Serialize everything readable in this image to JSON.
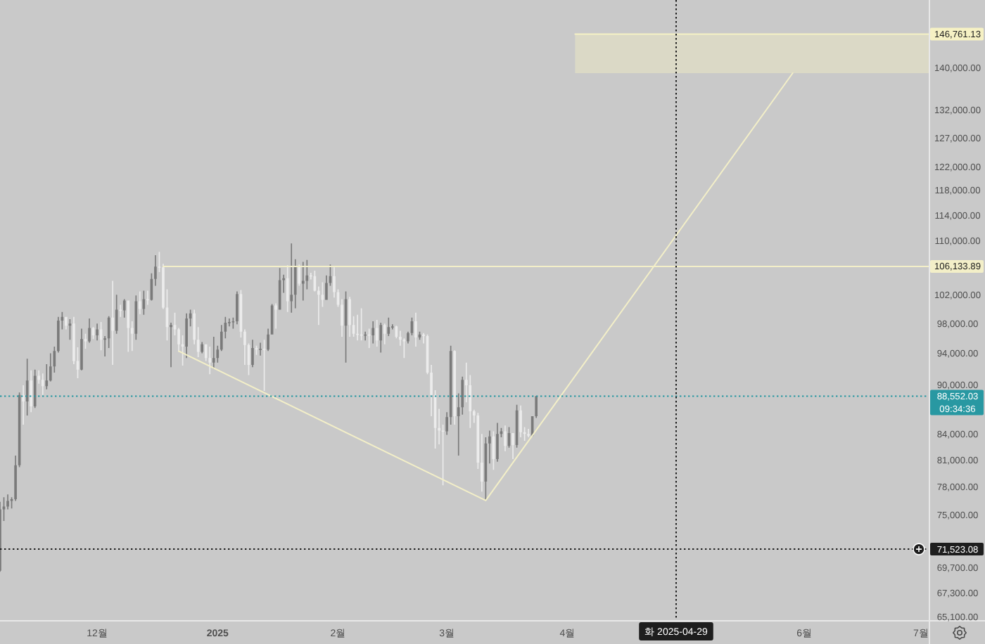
{
  "chart_data": {
    "type": "candlestick",
    "log": "y",
    "xlim": [
      "2024-11-06",
      "2025-07-03"
    ],
    "ylim": [
      64780,
      153930
    ],
    "xticks": [
      {
        "value": "2024-12-01",
        "label": "12월"
      },
      {
        "value": "2025-01-01",
        "label": "2025"
      },
      {
        "value": "2025-02-01",
        "label": "2월"
      },
      {
        "value": "2025-03-01",
        "label": "3월"
      },
      {
        "value": "2025-04-01",
        "label": "4월"
      },
      {
        "value": "2025-06-01",
        "label": "6월"
      },
      {
        "value": "2025-07-01",
        "label": "7월"
      }
    ],
    "yticks": [
      {
        "value": 65100,
        "label": "65,100.00"
      },
      {
        "value": 67300,
        "label": "67,300.00"
      },
      {
        "value": 69700,
        "label": "69,700.00"
      },
      {
        "value": 75000,
        "label": "75,000.00"
      },
      {
        "value": 78000,
        "label": "78,000.00"
      },
      {
        "value": 81000,
        "label": "81,000.00"
      },
      {
        "value": 84000,
        "label": "84,000.00"
      },
      {
        "value": 90000,
        "label": "90,000.00"
      },
      {
        "value": 94000,
        "label": "94,000.00"
      },
      {
        "value": 98000,
        "label": "98,000.00"
      },
      {
        "value": 102000,
        "label": "102,000.00"
      },
      {
        "value": 110000,
        "label": "110,000.00"
      },
      {
        "value": 114000,
        "label": "114,000.00"
      },
      {
        "value": 118000,
        "label": "118,000.00"
      },
      {
        "value": 122000,
        "label": "122,000.00"
      },
      {
        "value": 127000,
        "label": "127,000.00"
      },
      {
        "value": 132000,
        "label": "132,000.00"
      },
      {
        "value": 140000,
        "label": "140,000.00"
      }
    ],
    "x": [
      "2024-11-06",
      "2024-11-07",
      "2024-11-08",
      "2024-11-09",
      "2024-11-10",
      "2024-11-11",
      "2024-11-12",
      "2024-11-13",
      "2024-11-14",
      "2024-11-15",
      "2024-11-16",
      "2024-11-17",
      "2024-11-18",
      "2024-11-19",
      "2024-11-20",
      "2024-11-21",
      "2024-11-22",
      "2024-11-23",
      "2024-11-24",
      "2024-11-25",
      "2024-11-26",
      "2024-11-27",
      "2024-11-28",
      "2024-11-29",
      "2024-11-30",
      "2024-12-01",
      "2024-12-02",
      "2024-12-03",
      "2024-12-04",
      "2024-12-05",
      "2024-12-06",
      "2024-12-07",
      "2024-12-08",
      "2024-12-09",
      "2024-12-10",
      "2024-12-11",
      "2024-12-12",
      "2024-12-13",
      "2024-12-14",
      "2024-12-15",
      "2024-12-16",
      "2024-12-17",
      "2024-12-18",
      "2024-12-19",
      "2024-12-20",
      "2024-12-21",
      "2024-12-22",
      "2024-12-23",
      "2024-12-24",
      "2024-12-25",
      "2024-12-26",
      "2024-12-27",
      "2024-12-28",
      "2024-12-29",
      "2024-12-30",
      "2024-12-31",
      "2025-01-01",
      "2025-01-02",
      "2025-01-03",
      "2025-01-04",
      "2025-01-05",
      "2025-01-06",
      "2025-01-07",
      "2025-01-08",
      "2025-01-09",
      "2025-01-10",
      "2025-01-11",
      "2025-01-12",
      "2025-01-13",
      "2025-01-14",
      "2025-01-15",
      "2025-01-16",
      "2025-01-17",
      "2025-01-18",
      "2025-01-19",
      "2025-01-20",
      "2025-01-21",
      "2025-01-22",
      "2025-01-23",
      "2025-01-24",
      "2025-01-25",
      "2025-01-26",
      "2025-01-27",
      "2025-01-28",
      "2025-01-29",
      "2025-01-30",
      "2025-01-31",
      "2025-02-01",
      "2025-02-02",
      "2025-02-03",
      "2025-02-04",
      "2025-02-05",
      "2025-02-06",
      "2025-02-07",
      "2025-02-08",
      "2025-02-09",
      "2025-02-10",
      "2025-02-11",
      "2025-02-12",
      "2025-02-13",
      "2025-02-14",
      "2025-02-15",
      "2025-02-16",
      "2025-02-17",
      "2025-02-18",
      "2025-02-19",
      "2025-02-20",
      "2025-02-21",
      "2025-02-22",
      "2025-02-23",
      "2025-02-24",
      "2025-02-25",
      "2025-02-26",
      "2025-02-27",
      "2025-02-28",
      "2025-03-01",
      "2025-03-02",
      "2025-03-03",
      "2025-03-04",
      "2025-03-05",
      "2025-03-06",
      "2025-03-07",
      "2025-03-08",
      "2025-03-09",
      "2025-03-10",
      "2025-03-11",
      "2025-03-12",
      "2025-03-13",
      "2025-03-14",
      "2025-03-15",
      "2025-03-16",
      "2025-03-17",
      "2025-03-18",
      "2025-03-19",
      "2025-03-20",
      "2025-03-21",
      "2025-03-22",
      "2025-03-23",
      "2025-03-24"
    ],
    "ohlc": [
      [
        69400,
        76400,
        69300,
        75600
      ],
      [
        75600,
        76900,
        74400,
        75900
      ],
      [
        75900,
        77200,
        75600,
        76500
      ],
      [
        76500,
        76900,
        75700,
        76700
      ],
      [
        76700,
        81500,
        76500,
        80400
      ],
      [
        80400,
        89000,
        80200,
        88700
      ],
      [
        88700,
        89900,
        85100,
        87900
      ],
      [
        87900,
        93300,
        86200,
        90500
      ],
      [
        90500,
        91800,
        86600,
        87300
      ],
      [
        87300,
        91900,
        87100,
        91100
      ],
      [
        91100,
        91800,
        90100,
        90600
      ],
      [
        90600,
        91400,
        88700,
        89800
      ],
      [
        89800,
        92600,
        89400,
        90500
      ],
      [
        90500,
        94000,
        90400,
        92300
      ],
      [
        92300,
        94900,
        91500,
        94300
      ],
      [
        94300,
        98900,
        94100,
        98400
      ],
      [
        98400,
        99600,
        97200,
        98900
      ],
      [
        98900,
        98900,
        97200,
        97700
      ],
      [
        97700,
        98600,
        95800,
        98000
      ],
      [
        98000,
        98900,
        92600,
        93000
      ],
      [
        93000,
        94800,
        90800,
        91900
      ],
      [
        91900,
        97300,
        91800,
        95900
      ],
      [
        95900,
        96600,
        94600,
        95600
      ],
      [
        95600,
        98700,
        95400,
        97400
      ],
      [
        97400,
        97500,
        95900,
        96400
      ],
      [
        96400,
        98000,
        95700,
        97200
      ],
      [
        97200,
        98200,
        94400,
        95800
      ],
      [
        95800,
        96300,
        93600,
        96000
      ],
      [
        96000,
        99000,
        94700,
        98800
      ],
      [
        98800,
        104000,
        92500,
        97000
      ],
      [
        97000,
        102000,
        96600,
        99900
      ],
      [
        99900,
        100600,
        98900,
        99800
      ],
      [
        99800,
        101400,
        98800,
        101200
      ],
      [
        101200,
        101200,
        94200,
        97400
      ],
      [
        97400,
        98300,
        94300,
        96600
      ],
      [
        96600,
        101900,
        95800,
        101100
      ],
      [
        101100,
        102500,
        99300,
        100000
      ],
      [
        100000,
        102600,
        99200,
        101400
      ],
      [
        101400,
        102600,
        100600,
        101300
      ],
      [
        101300,
        105100,
        101200,
        104300
      ],
      [
        104300,
        107800,
        103300,
        106100
      ],
      [
        106100,
        108300,
        105300,
        106000
      ],
      [
        106000,
        106500,
        100000,
        100200
      ],
      [
        100200,
        102800,
        95700,
        97500
      ],
      [
        97500,
        98100,
        92200,
        97800
      ],
      [
        97800,
        99500,
        96400,
        97200
      ],
      [
        97200,
        97400,
        94200,
        95200
      ],
      [
        95200,
        96400,
        92400,
        94900
      ],
      [
        94900,
        99400,
        93400,
        98700
      ],
      [
        98700,
        99900,
        97600,
        99400
      ],
      [
        99400,
        99900,
        95200,
        95800
      ],
      [
        95800,
        97500,
        93500,
        94200
      ],
      [
        94200,
        95500,
        94000,
        95200
      ],
      [
        95200,
        95200,
        93000,
        93400
      ],
      [
        93400,
        94900,
        91300,
        92800
      ],
      [
        92800,
        96200,
        92000,
        93400
      ],
      [
        93400,
        95000,
        92800,
        94500
      ],
      [
        94500,
        97800,
        94300,
        96900
      ],
      [
        96900,
        98900,
        96000,
        98100
      ],
      [
        98100,
        98700,
        97600,
        98200
      ],
      [
        98200,
        98800,
        97300,
        98300
      ],
      [
        98300,
        102500,
        97900,
        102100
      ],
      [
        102100,
        102700,
        96100,
        96900
      ],
      [
        96900,
        97200,
        92500,
        95100
      ],
      [
        95100,
        95300,
        91200,
        92500
      ],
      [
        92500,
        95800,
        92200,
        94700
      ],
      [
        94700,
        95000,
        93800,
        94500
      ],
      [
        94500,
        95400,
        93700,
        94600
      ],
      [
        94600,
        95800,
        89200,
        94500
      ],
      [
        94500,
        97300,
        94300,
        96500
      ],
      [
        96500,
        100700,
        96500,
        100500
      ],
      [
        100500,
        100800,
        97300,
        99900
      ],
      [
        99900,
        105900,
        99900,
        104100
      ],
      [
        104100,
        104900,
        102300,
        104400
      ],
      [
        104400,
        106300,
        99600,
        101100
      ],
      [
        101100,
        109600,
        99500,
        102000
      ],
      [
        102000,
        107200,
        100100,
        106100
      ],
      [
        106100,
        106400,
        103300,
        103600
      ],
      [
        103600,
        106800,
        101200,
        104000
      ],
      [
        104000,
        107100,
        102800,
        104800
      ],
      [
        104800,
        105200,
        104200,
        104700
      ],
      [
        104700,
        105500,
        102500,
        102600
      ],
      [
        102600,
        103200,
        97800,
        102000
      ],
      [
        102000,
        103800,
        100300,
        101300
      ],
      [
        101300,
        104800,
        101300,
        103700
      ],
      [
        103700,
        106400,
        103300,
        104700
      ],
      [
        104700,
        106000,
        101600,
        102400
      ],
      [
        102400,
        102800,
        100300,
        100600
      ],
      [
        100600,
        101400,
        96200,
        97700
      ],
      [
        97700,
        102500,
        92800,
        101400
      ],
      [
        101400,
        101700,
        96200,
        97800
      ],
      [
        97800,
        99000,
        96200,
        96600
      ],
      [
        96600,
        99200,
        95700,
        96500
      ],
      [
        96500,
        100100,
        95700,
        96400
      ],
      [
        96400,
        96900,
        95700,
        96500
      ],
      [
        96500,
        97300,
        94700,
        96400
      ],
      [
        96400,
        98300,
        95300,
        97400
      ],
      [
        97400,
        98500,
        94900,
        95700
      ],
      [
        95700,
        98100,
        94100,
        97800
      ],
      [
        97800,
        98000,
        95200,
        96600
      ],
      [
        96600,
        98800,
        96300,
        97500
      ],
      [
        97500,
        97900,
        97200,
        97600
      ],
      [
        97600,
        97700,
        96000,
        96200
      ],
      [
        96200,
        97000,
        95000,
        95800
      ],
      [
        95800,
        96000,
        93400,
        95600
      ],
      [
        95600,
        96900,
        95300,
        96700
      ],
      [
        96700,
        98800,
        96400,
        98300
      ],
      [
        98300,
        99500,
        94900,
        96100
      ],
      [
        96100,
        96900,
        95800,
        96500
      ],
      [
        96500,
        96700,
        95300,
        96300
      ],
      [
        96300,
        96500,
        91300,
        91500
      ],
      [
        91500,
        92500,
        86100,
        88700
      ],
      [
        88700,
        89300,
        82300,
        84700
      ],
      [
        84700,
        87000,
        82800,
        84400
      ],
      [
        84400,
        85100,
        78200,
        84300
      ],
      [
        84300,
        86600,
        83900,
        86000
      ],
      [
        86000,
        95000,
        85100,
        94300
      ],
      [
        94300,
        94400,
        85100,
        86100
      ],
      [
        86100,
        88900,
        81500,
        87200
      ],
      [
        87200,
        91000,
        86300,
        90600
      ],
      [
        90600,
        92800,
        87800,
        89900
      ],
      [
        89900,
        91200,
        84700,
        86700
      ],
      [
        86700,
        86900,
        85300,
        86200
      ],
      [
        86200,
        86500,
        80000,
        80700
      ],
      [
        80700,
        84000,
        77500,
        78600
      ],
      [
        78600,
        83600,
        76600,
        82900
      ],
      [
        82900,
        84400,
        80600,
        83700
      ],
      [
        83700,
        84300,
        79900,
        81100
      ],
      [
        81100,
        85300,
        80800,
        84000
      ],
      [
        84000,
        84700,
        83600,
        84300
      ],
      [
        84300,
        85000,
        82000,
        82600
      ],
      [
        82600,
        84800,
        82400,
        84100
      ],
      [
        84100,
        84100,
        81100,
        82700
      ],
      [
        82700,
        87500,
        82400,
        86800
      ],
      [
        86800,
        87400,
        83600,
        84200
      ],
      [
        84200,
        84800,
        83200,
        84000
      ],
      [
        84000,
        84600,
        83600,
        83800
      ],
      [
        83800,
        86100,
        83700,
        86100
      ],
      [
        86100,
        88600,
        85900,
        88552.03
      ]
    ],
    "colors": [
      "#7a7a7a",
      "#7a7a7a",
      "#7a7a7a",
      "#7a7a7a",
      "#7a7a7a",
      "#7a7a7a",
      "#ececec",
      "#7a7a7a",
      "#ececec",
      "#7a7a7a",
      "#ececec",
      "#ececec",
      "#7a7a7a",
      "#7a7a7a",
      "#7a7a7a",
      "#7a7a7a",
      "#7a7a7a",
      "#ececec",
      "#7a7a7a",
      "#ececec",
      "#ececec",
      "#7a7a7a",
      "#ececec",
      "#7a7a7a",
      "#ececec",
      "#7a7a7a",
      "#ececec",
      "#7a7a7a",
      "#7a7a7a",
      "#ececec",
      "#7a7a7a",
      "#ececec",
      "#7a7a7a",
      "#ececec",
      "#ececec",
      "#7a7a7a",
      "#ececec",
      "#7a7a7a",
      "#ececec",
      "#7a7a7a",
      "#7a7a7a",
      "#ececec",
      "#ececec",
      "#ececec",
      "#7a7a7a",
      "#ececec",
      "#ececec",
      "#ececec",
      "#7a7a7a",
      "#7a7a7a",
      "#ececec",
      "#ececec",
      "#7a7a7a",
      "#ececec",
      "#ececec",
      "#7a7a7a",
      "#7a7a7a",
      "#7a7a7a",
      "#7a7a7a",
      "#7a7a7a",
      "#7a7a7a",
      "#7a7a7a",
      "#ececec",
      "#ececec",
      "#ececec",
      "#7a7a7a",
      "#ececec",
      "#7a7a7a",
      "#ececec",
      "#7a7a7a",
      "#7a7a7a",
      "#ececec",
      "#7a7a7a",
      "#7a7a7a",
      "#ececec",
      "#7a7a7a",
      "#7a7a7a",
      "#ececec",
      "#7a7a7a",
      "#7a7a7a",
      "#ececec",
      "#ececec",
      "#ececec",
      "#ececec",
      "#7a7a7a",
      "#7a7a7a",
      "#ececec",
      "#ececec",
      "#ececec",
      "#7a7a7a",
      "#ececec",
      "#ececec",
      "#ececec",
      "#ececec",
      "#7a7a7a",
      "#ececec",
      "#7a7a7a",
      "#ececec",
      "#7a7a7a",
      "#ececec",
      "#7a7a7a",
      "#7a7a7a",
      "#ececec",
      "#ececec",
      "#ececec",
      "#7a7a7a",
      "#7a7a7a",
      "#ececec",
      "#7a7a7a",
      "#ececec",
      "#ececec",
      "#ececec",
      "#ececec",
      "#ececec",
      "#ececec",
      "#7a7a7a",
      "#7a7a7a",
      "#ececec",
      "#7a7a7a",
      "#7a7a7a",
      "#ececec",
      "#ececec",
      "#ececec",
      "#ececec",
      "#ececec",
      "#7a7a7a",
      "#7a7a7a",
      "#ececec",
      "#7a7a7a",
      "#7a7a7a",
      "#ececec",
      "#7a7a7a",
      "#ececec",
      "#7a7a7a",
      "#ececec",
      "#ececec",
      "#ececec",
      "#7a7a7a",
      "#7a7a7a"
    ],
    "series": [
      {
        "type": "line",
        "color": "#f3efc8",
        "x": [
          "2024-12-18",
          "2025-07-03"
        ],
        "values": [
          106133.89,
          106133.89
        ],
        "value_labels": [
          null,
          "106,133.89"
        ]
      },
      {
        "type": "line",
        "color": "#f3efc8",
        "x": [
          "2024-12-22",
          "2025-03-11",
          "2025-05-29"
        ],
        "values": [
          94300,
          76550,
          139000
        ]
      },
      {
        "type": "line",
        "color": "#f6f1c4",
        "x": [
          "2025-04-03",
          "2025-07-03"
        ],
        "values": [
          146761.13,
          146761.13
        ],
        "lower": [
          139000,
          139000
        ],
        "upper": [
          146761.13,
          146761.13
        ],
        "value_labels": [
          null,
          "146,761.13"
        ]
      }
    ],
    "ref_lines": [
      {
        "axis": "y",
        "value": 88552.03,
        "label": "88,552.03",
        "color": "#2898a2",
        "line_style": "dotted"
      },
      {
        "axis": "y",
        "value": 71523.08,
        "label": "71,523.08",
        "color": "#1e1e1e",
        "line_style": "dotted"
      },
      {
        "axis": "x",
        "value": "2025-04-29",
        "label": "화 2025-04-29",
        "color": "#1e1e1e",
        "line_style": "dotted"
      }
    ],
    "annotations": [
      "09:34:36"
    ]
  }
}
